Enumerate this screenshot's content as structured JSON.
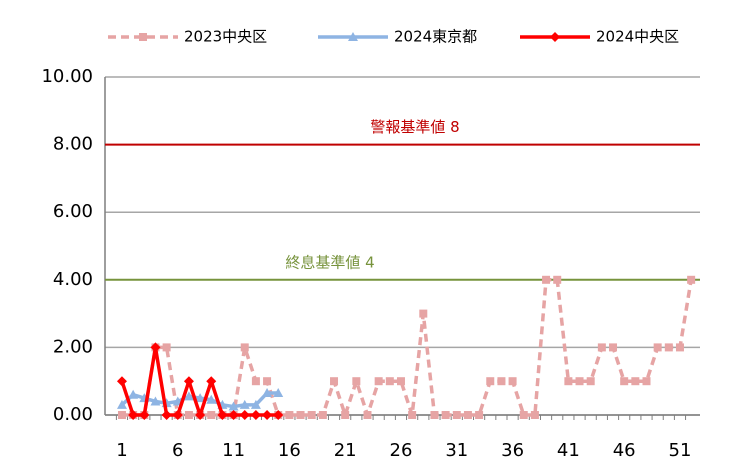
{
  "chart_data": {
    "type": "line",
    "categories": [
      "1",
      null,
      null,
      null,
      null,
      "6",
      null,
      null,
      null,
      null,
      "11",
      null,
      null,
      null,
      null,
      "16",
      null,
      null,
      null,
      null,
      "21",
      null,
      null,
      null,
      null,
      "26",
      null,
      null,
      null,
      null,
      "31",
      null,
      null,
      null,
      null,
      "36",
      null,
      null,
      null,
      null,
      "41",
      null,
      null,
      null,
      null,
      "46",
      null,
      null,
      null,
      null,
      "51",
      null
    ],
    "series": [
      {
        "name": "2023中央区",
        "color": "#e6a4a4",
        "dash": true,
        "marker": "square",
        "values": [
          0,
          0,
          0,
          2,
          2,
          0,
          0,
          0,
          0,
          0,
          0,
          2,
          1,
          1,
          0,
          0,
          0,
          0,
          0,
          1,
          0,
          1,
          0,
          1,
          1,
          1,
          0,
          3,
          0,
          0,
          0,
          0,
          0,
          1,
          1,
          1,
          0,
          0,
          4,
          4,
          1,
          1,
          1,
          2,
          2,
          1,
          1,
          1,
          2,
          2,
          2,
          4
        ]
      },
      {
        "name": "2024東京都",
        "color": "#8eb4e3",
        "dash": false,
        "marker": "triangle",
        "values": [
          0.3,
          0.6,
          0.5,
          0.4,
          0.35,
          0.4,
          0.55,
          0.5,
          0.45,
          0.3,
          0.25,
          0.3,
          0.3,
          0.65,
          0.65,
          null,
          null,
          null,
          null,
          null,
          null,
          null,
          null,
          null,
          null,
          null,
          null,
          null,
          null,
          null,
          null,
          null,
          null,
          null,
          null,
          null,
          null,
          null,
          null,
          null,
          null,
          null,
          null,
          null,
          null,
          null,
          null,
          null,
          null,
          null,
          null,
          null
        ]
      },
      {
        "name": "2024中央区",
        "color": "#ff0000",
        "dash": false,
        "marker": "diamond",
        "values": [
          1,
          0,
          0,
          2,
          0,
          0,
          1,
          0,
          1,
          0,
          0,
          0,
          0,
          0,
          0,
          null,
          null,
          null,
          null,
          null,
          null,
          null,
          null,
          null,
          null,
          null,
          null,
          null,
          null,
          null,
          null,
          null,
          null,
          null,
          null,
          null,
          null,
          null,
          null,
          null,
          null,
          null,
          null,
          null,
          null,
          null,
          null,
          null,
          null,
          null,
          null,
          null
        ]
      }
    ],
    "reference_lines": [
      {
        "value": 8,
        "label": "警報基準値 8",
        "color": "#c00000"
      },
      {
        "value": 4,
        "label": "終息基準値 4",
        "color": "#77933c"
      }
    ],
    "ylim": [
      0,
      10
    ],
    "yticks": [
      {
        "value": 0,
        "label": "0.00"
      },
      {
        "value": 2,
        "label": "2.00"
      },
      {
        "value": 4,
        "label": "4.00"
      },
      {
        "value": 6,
        "label": "6.00"
      },
      {
        "value": 8,
        "label": "8.00"
      },
      {
        "value": 10,
        "label": "10.00"
      }
    ],
    "grid": true,
    "legend": "top"
  }
}
